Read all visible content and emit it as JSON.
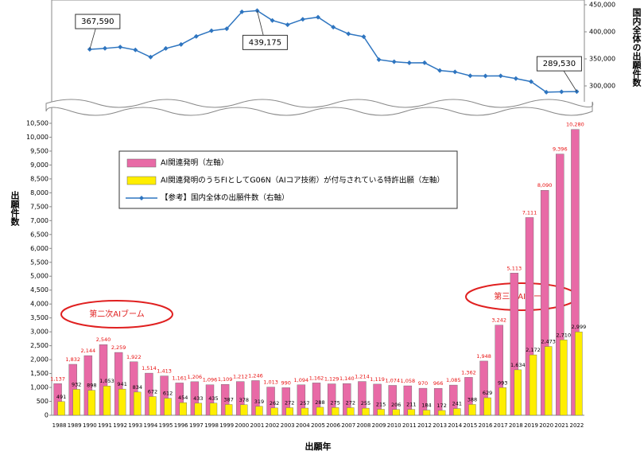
{
  "chart_data": {
    "type": "bar",
    "categories": [
      "1988",
      "1989",
      "1990",
      "1991",
      "1992",
      "1993",
      "1994",
      "1995",
      "1996",
      "1997",
      "1998",
      "1999",
      "2000",
      "2001",
      "2002",
      "2003",
      "2004",
      "2005",
      "2006",
      "2007",
      "2008",
      "2009",
      "2010",
      "2011",
      "2012",
      "2013",
      "2014",
      "2015",
      "2016",
      "2017",
      "2018",
      "2019",
      "2020",
      "2021",
      "2022"
    ],
    "series": [
      {
        "name": "AI関連発明（左軸）",
        "color": "#e86aa6",
        "label_color": "#e81010",
        "values": [
          1137,
          1832,
          2144,
          2540,
          2259,
          1922,
          1514,
          1413,
          1161,
          1206,
          1096,
          1109,
          1212,
          1246,
          1013,
          990,
          1094,
          1162,
          1129,
          1140,
          1214,
          1119,
          1074,
          1058,
          970,
          966,
          1085,
          1362,
          1948,
          3242,
          5113,
          7111,
          8090,
          9396,
          10280
        ],
        "value_labels": [
          "1,137",
          "1,832",
          "2,144",
          "2,540",
          "2,259",
          "1,922",
          "1,514",
          "1,413",
          "1,161",
          "1,206",
          "1,096",
          "1,109",
          "1,212",
          "1,246",
          "1,013",
          "990",
          "1,094",
          "1,162",
          "1,129",
          "1,140",
          "1,214",
          "1,119",
          "1,074",
          "1,058",
          "970",
          "966",
          "1,085",
          "1,362",
          "1,948",
          "3,242",
          "5,113",
          "7,111",
          "8,090",
          "9,396",
          "10,280"
        ]
      },
      {
        "name": "AI関連発明のうちFIとしてG06N（AIコア技術）が付与されている特許出願（左軸）",
        "color": "#ffee00",
        "label_color": "#000000",
        "values": [
          491,
          932,
          898,
          1053,
          941,
          834,
          672,
          612,
          454,
          433,
          435,
          387,
          378,
          319,
          262,
          272,
          257,
          288,
          275,
          272,
          255,
          215,
          206,
          211,
          184,
          172,
          241,
          388,
          629,
          993,
          1634,
          2172,
          2473,
          2710,
          2999
        ],
        "value_labels": [
          "491",
          "932",
          "898",
          "1,053",
          "941",
          "834",
          "672",
          "612",
          "454",
          "433",
          "435",
          "387",
          "378",
          "319",
          "262",
          "272",
          "257",
          "288",
          "275",
          "272",
          "255",
          "215",
          "206",
          "211",
          "184",
          "172",
          "241",
          "388",
          "629",
          "993",
          "1,634",
          "2,172",
          "2,473",
          "2,710",
          "2,999"
        ]
      },
      {
        "name": "【参考】国内全体の出願件数（右軸）",
        "color": "#2e75c0",
        "type": "line",
        "axis": "y2",
        "values": [
          null,
          null,
          367590,
          369396,
          371894,
          366486,
          353301,
          369215,
          376615,
          391572,
          401932,
          405655,
          436865,
          439175,
          421044,
          413092,
          423081,
          427078,
          408674,
          396291,
          391002,
          348596,
          344598,
          342610,
          342796,
          328436,
          325989,
          318721,
          318381,
          318479,
          313567,
          307969,
          288472,
          289200,
          289530
        ],
        "value_labels": [
          null,
          null,
          "367,590",
          null,
          null,
          null,
          null,
          null,
          null,
          null,
          null,
          null,
          null,
          "439,175",
          null,
          null,
          null,
          null,
          null,
          null,
          null,
          null,
          null,
          null,
          null,
          null,
          null,
          null,
          null,
          null,
          null,
          null,
          null,
          null,
          "289,530"
        ]
      }
    ],
    "ylim": [
      0,
      10500
    ],
    "yticks": [
      0,
      500,
      {
        "value": 1000,
        "label": "1,000"
      },
      {
        "value": 1500,
        "label": "1,500"
      },
      {
        "value": 2000,
        "label": "2,000"
      },
      {
        "value": 2500,
        "label": "2,500"
      },
      {
        "value": 3000,
        "label": "3,000"
      },
      {
        "value": 3500,
        "label": "3,500"
      },
      {
        "value": 4000,
        "label": "4,000"
      },
      {
        "value": 4500,
        "label": "4,500"
      },
      {
        "value": 5000,
        "label": "5,000"
      },
      {
        "value": 5500,
        "label": "5,500"
      },
      {
        "value": 6000,
        "label": "6,000"
      },
      {
        "value": 6500,
        "label": "6,500"
      },
      {
        "value": 7000,
        "label": "7,000"
      },
      {
        "value": 7500,
        "label": "7,500"
      },
      {
        "value": 8000,
        "label": "8,000"
      },
      {
        "value": 8500,
        "label": "8,500"
      },
      {
        "value": 9000,
        "label": "9,000"
      },
      {
        "value": 9500,
        "label": "9,500"
      },
      {
        "value": 10000,
        "label": "10,000"
      },
      {
        "value": 10500,
        "label": "10,500"
      }
    ],
    "y2lim": [
      280000,
      450000
    ],
    "y2ticks": [
      {
        "value": 300000,
        "label": "300,000"
      },
      {
        "value": 350000,
        "label": "350,000"
      },
      {
        "value": 400000,
        "label": "400,000"
      },
      {
        "value": 450000,
        "label": "450,000"
      }
    ],
    "ylabel": "出願件数",
    "y2label": "国内全体の出願件数",
    "xlabel": "出願年",
    "annotations": [
      "第二次AIブーム",
      "第三次AIブーム"
    ]
  }
}
